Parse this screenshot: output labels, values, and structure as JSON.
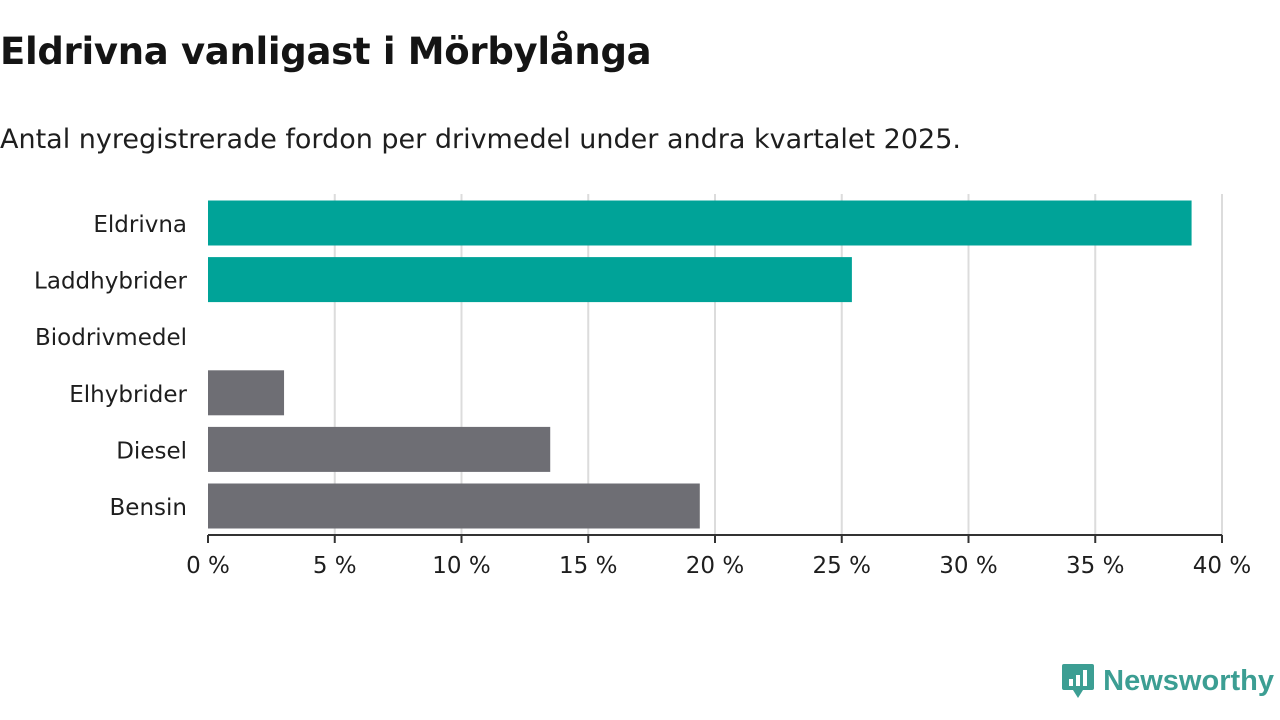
{
  "header": {
    "title": "Eldrivna vanligast i Mörbylånga",
    "subtitle": "Antal nyregistrerade fordon per drivmedel under andra kvartalet 2025."
  },
  "brand": {
    "name": "Newsworthy",
    "icon": "bar-chart-logo-icon",
    "color": "#3c9e93"
  },
  "colors": {
    "highlight": "#00a398",
    "other": "#6e6e74",
    "grid": "#dcdcdc",
    "axis": "#333333"
  },
  "chart_data": {
    "type": "bar",
    "orientation": "horizontal",
    "categories": [
      "Eldrivna",
      "Laddhybrider",
      "Biodrivmedel",
      "Elhybrider",
      "Diesel",
      "Bensin"
    ],
    "values": [
      38.8,
      25.4,
      0,
      3.0,
      13.5,
      19.4
    ],
    "bar_colors": [
      "#00a398",
      "#00a398",
      "#6e6e74",
      "#6e6e74",
      "#6e6e74",
      "#6e6e74"
    ],
    "xlim": [
      0,
      40
    ],
    "xticks": [
      0,
      5,
      10,
      15,
      20,
      25,
      30,
      35,
      40
    ],
    "xtick_labels": [
      "0 %",
      "5 %",
      "10 %",
      "15 %",
      "20 %",
      "25 %",
      "30 %",
      "35 %",
      "40 %"
    ],
    "xlabel": "",
    "ylabel": "",
    "grid": true,
    "legend": "none"
  }
}
